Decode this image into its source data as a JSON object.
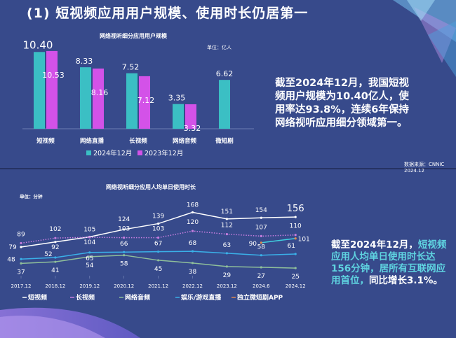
{
  "title": "(1) 短视频应用用户规模、使用时长仍居第一",
  "source": "数据来源：CNNIC 2024.12",
  "note1": "截至2024年12月，我国短视频用户规模为10.40亿人，使用率达93.8%，连续6年保持网络视听应用细分领域第一。",
  "note2": {
    "part1": "截至2024年12月，",
    "part2": "短视频应用人均单日使用时长达156分钟，居所有互联网应用首位，",
    "part3": "同比增长3.1%。"
  },
  "colors": {
    "bg": "#374a8b",
    "teal": "#3bbfc4",
    "magenta": "#d352e8",
    "highlight": "#5fd3e0"
  },
  "chart_data": [
    {
      "type": "bar",
      "title": "网络视听细分应用用户规模",
      "unit": "单位：亿人",
      "categories": [
        "短视频",
        "网络直播",
        "长视频",
        "网络音频",
        "微短剧"
      ],
      "series": [
        {
          "name": "2024年12月",
          "color": "#3bbfc4",
          "values": [
            10.4,
            8.33,
            7.52,
            3.35,
            6.62
          ]
        },
        {
          "name": "2023年12月",
          "color": "#d352e8",
          "values": [
            10.53,
            8.16,
            7.12,
            3.32,
            null
          ]
        }
      ]
    },
    {
      "type": "line",
      "title": "网络视听细分应用人均单日使用时长",
      "unit": "单位：分钟",
      "x": [
        "2017.12",
        "2018.12",
        "2019.12",
        "2020.12",
        "2021.12",
        "2022.12",
        "2023.12",
        "2024.6",
        "2024.12"
      ],
      "series": [
        {
          "name": "短视频",
          "color": "#ffffff",
          "style": "solid",
          "values": [
            79,
            92,
            105,
            124,
            139,
            168,
            151,
            154,
            156
          ]
        },
        {
          "name": "长视频",
          "color": "#c77ee0",
          "style": "dotted",
          "values": [
            89,
            102,
            104,
            103,
            103,
            120,
            112,
            107,
            110
          ]
        },
        {
          "name": "网络音频",
          "color": "#8fbf9a",
          "style": "solid",
          "values": [
            37,
            41,
            54,
            58,
            45,
            38,
            29,
            27,
            25
          ]
        },
        {
          "name": "娱乐/游戏直播",
          "color": "#3ab0e8",
          "style": "solid",
          "values": [
            48,
            52,
            65,
            66,
            67,
            68,
            63,
            58,
            61
          ]
        },
        {
          "name": "独立微短剧APP",
          "color": "#40d0e0",
          "marker": "#e08a50",
          "style": "solid",
          "values": [
            null,
            null,
            null,
            null,
            null,
            null,
            null,
            90,
            101
          ]
        }
      ]
    }
  ]
}
